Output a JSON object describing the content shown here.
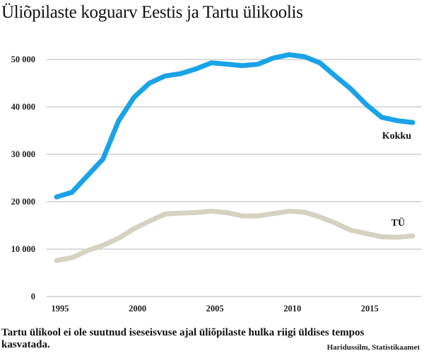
{
  "chart_data": {
    "type": "line",
    "title": "Üliõpilaste koguarv Eestis ja Tartu ülikoolis",
    "xlabel": "",
    "ylabel": "",
    "x": [
      1995,
      1996,
      1997,
      1998,
      1999,
      2000,
      2001,
      2002,
      2003,
      2004,
      2005,
      2006,
      2007,
      2008,
      2009,
      2010,
      2011,
      2012,
      2013,
      2014,
      2015,
      2016,
      2017,
      2018
    ],
    "xlim": [
      1995,
      2018
    ],
    "ylim": [
      0,
      52000
    ],
    "x_ticks": [
      1995,
      2000,
      2005,
      2010,
      2015
    ],
    "x_tick_labels": [
      "1995",
      "2000",
      "2005",
      "2010",
      "2015"
    ],
    "y_ticks": [
      0,
      10000,
      20000,
      30000,
      40000,
      50000
    ],
    "y_tick_labels": [
      "0",
      "10 000",
      "20 000",
      "30 000",
      "40 000",
      "50 000"
    ],
    "grid": "horizontal",
    "series": [
      {
        "name": "Kokku",
        "color": "#1aa3e6",
        "values": [
          21000,
          22000,
          25500,
          29000,
          37000,
          42000,
          45000,
          46500,
          47000,
          48000,
          49300,
          49000,
          48700,
          49000,
          50300,
          51000,
          50600,
          49300,
          46500,
          43800,
          40500,
          37800,
          37100,
          36700
        ]
      },
      {
        "name": "TÜ",
        "color": "#d6d2c2",
        "values": [
          7600,
          8200,
          9700,
          10800,
          12300,
          14300,
          15900,
          17400,
          17600,
          17700,
          18000,
          17700,
          17000,
          17000,
          17500,
          18000,
          17800,
          16800,
          15500,
          14000,
          13300,
          12600,
          12500,
          12800
        ]
      }
    ],
    "caption": "Tartu ülikool ei ole suutnud iseseisvuse ajal üliõpilaste hulka riigi üldises tempos kasvatada.",
    "source": "Haridussilm, Statistikaamet"
  }
}
